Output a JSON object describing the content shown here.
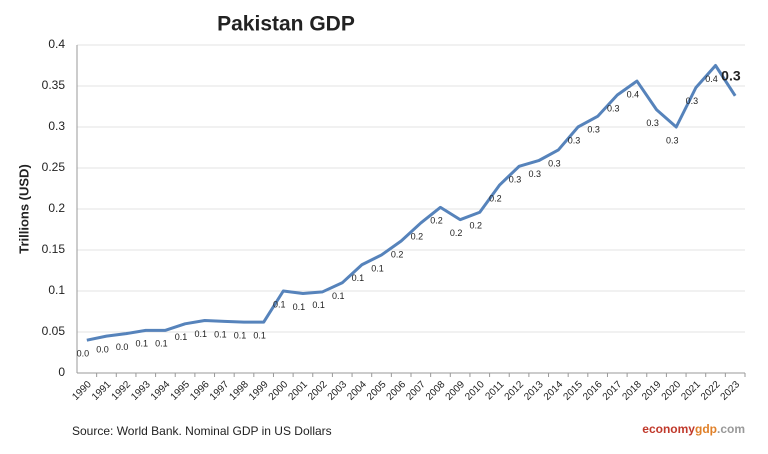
{
  "chart_data": {
    "type": "line",
    "title": "Pakistan GDP",
    "y_label": "Trillions (USD)",
    "categories": [
      "1990",
      "1991",
      "1992",
      "1993",
      "1994",
      "1995",
      "1996",
      "1997",
      "1998",
      "1999",
      "2000",
      "2001",
      "2002",
      "2003",
      "2004",
      "2005",
      "2006",
      "2007",
      "2008",
      "2009",
      "2010",
      "2011",
      "2012",
      "2013",
      "2014",
      "2015",
      "2016",
      "2017",
      "2018",
      "2019",
      "2020",
      "2021",
      "2022",
      "2023"
    ],
    "series": [
      {
        "name": "GDP",
        "color": "#5683bb",
        "values": [
          0.04,
          0.045,
          0.048,
          0.052,
          0.052,
          0.06,
          0.064,
          0.063,
          0.062,
          0.062,
          0.1,
          0.097,
          0.099,
          0.11,
          0.132,
          0.144,
          0.161,
          0.183,
          0.202,
          0.187,
          0.196,
          0.229,
          0.252,
          0.259,
          0.272,
          0.3,
          0.313,
          0.339,
          0.356,
          0.321,
          0.3,
          0.348,
          0.375,
          0.338
        ],
        "value_labels": [
          "0.0",
          "0.0",
          "0.0",
          "0.1",
          "0.1",
          "0.1",
          "0.1",
          "0.1",
          "0.1",
          "0.1",
          "0.1",
          "0.1",
          "0.1",
          "0.1",
          "0.1",
          "0.1",
          "0.2",
          "0.2",
          "0.2",
          "0.2",
          "0.2",
          "0.2",
          "0.3",
          "0.3",
          "0.3",
          "0.3",
          "0.3",
          "0.3",
          "0.4",
          "0.3",
          "0.3",
          "0.3",
          "0.4",
          "0.3"
        ]
      }
    ],
    "ylim": [
      0,
      0.4
    ],
    "yticks": [
      0,
      0.05,
      0.1,
      0.15,
      0.2,
      0.25,
      0.3,
      0.35,
      0.4
    ],
    "grid": true,
    "source": "Source: World Bank.  Nominal GDP  in US Dollars",
    "watermark": [
      "economy",
      "gdp",
      ".com"
    ]
  }
}
